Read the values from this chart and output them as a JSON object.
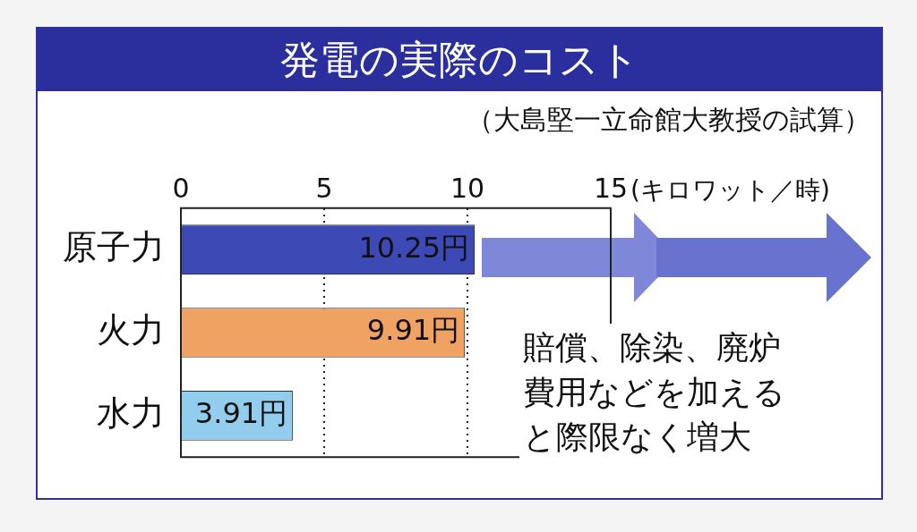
{
  "chart_data": {
    "type": "bar",
    "orientation": "horizontal",
    "title": "発電の実際のコスト",
    "subtitle": "（大島堅一立命館大教授の試算）",
    "xlabel": "(キロワット／時)",
    "categories": [
      "原子力",
      "火力",
      "水力"
    ],
    "values": [
      10.25,
      9.91,
      3.91
    ],
    "colors": [
      "#3d4ab5",
      "#f0a263",
      "#92cdee"
    ],
    "value_labels": [
      "10.25円",
      "9.91円",
      "3.91円"
    ],
    "xlim": [
      0,
      15
    ],
    "xticks": [
      0,
      5,
      10,
      15
    ],
    "grid": "x",
    "legend": false,
    "annotations": [
      "賠償、除染、廃炉費用などを加えると際限なく増大"
    ]
  }
}
